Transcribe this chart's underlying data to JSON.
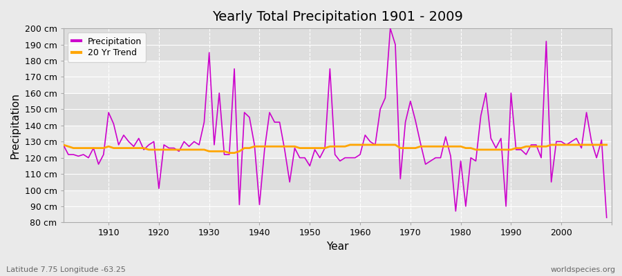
{
  "title": "Yearly Total Precipitation 1901 - 2009",
  "xlabel": "Year",
  "ylabel": "Precipitation",
  "subtitle": "Latitude 7.75 Longitude -63.25",
  "watermark": "worldspecies.org",
  "years": [
    1901,
    1902,
    1903,
    1904,
    1905,
    1906,
    1907,
    1908,
    1909,
    1910,
    1911,
    1912,
    1913,
    1914,
    1915,
    1916,
    1917,
    1918,
    1919,
    1920,
    1921,
    1922,
    1923,
    1924,
    1925,
    1926,
    1927,
    1928,
    1929,
    1930,
    1931,
    1932,
    1933,
    1934,
    1935,
    1936,
    1937,
    1938,
    1939,
    1940,
    1941,
    1942,
    1943,
    1944,
    1945,
    1946,
    1947,
    1948,
    1949,
    1950,
    1951,
    1952,
    1953,
    1954,
    1955,
    1956,
    1957,
    1958,
    1959,
    1960,
    1961,
    1962,
    1963,
    1964,
    1965,
    1966,
    1967,
    1968,
    1969,
    1970,
    1971,
    1972,
    1973,
    1974,
    1975,
    1976,
    1977,
    1978,
    1979,
    1980,
    1981,
    1982,
    1983,
    1984,
    1985,
    1986,
    1987,
    1988,
    1989,
    1990,
    1991,
    1992,
    1993,
    1994,
    1995,
    1996,
    1997,
    1998,
    1999,
    2000,
    2001,
    2002,
    2003,
    2004,
    2005,
    2006,
    2007,
    2008,
    2009
  ],
  "precipitation": [
    128,
    122,
    122,
    121,
    122,
    120,
    126,
    116,
    122,
    148,
    141,
    128,
    134,
    130,
    127,
    132,
    125,
    128,
    130,
    101,
    128,
    126,
    126,
    124,
    130,
    127,
    130,
    128,
    142,
    185,
    128,
    160,
    122,
    122,
    175,
    91,
    148,
    145,
    128,
    91,
    125,
    148,
    142,
    142,
    125,
    105,
    126,
    120,
    120,
    115,
    125,
    120,
    126,
    175,
    122,
    118,
    120,
    120,
    120,
    122,
    134,
    130,
    128,
    150,
    157,
    200,
    190,
    107,
    142,
    155,
    143,
    129,
    116,
    118,
    120,
    120,
    133,
    121,
    87,
    118,
    90,
    120,
    118,
    146,
    160,
    132,
    126,
    132,
    90,
    160,
    125,
    125,
    122,
    128,
    128,
    120,
    192,
    105,
    130,
    130,
    128,
    130,
    132,
    126,
    148,
    130,
    120,
    131,
    83
  ],
  "trend_years": [
    1901,
    1902,
    1903,
    1904,
    1905,
    1906,
    1907,
    1908,
    1909,
    1910,
    1911,
    1912,
    1913,
    1914,
    1915,
    1916,
    1917,
    1918,
    1919,
    1920,
    1921,
    1922,
    1923,
    1924,
    1925,
    1926,
    1927,
    1928,
    1929,
    1930,
    1931,
    1932,
    1933,
    1934,
    1935,
    1936,
    1937,
    1938,
    1939,
    1940,
    1941,
    1942,
    1943,
    1944,
    1945,
    1946,
    1947,
    1948,
    1949,
    1950,
    1951,
    1952,
    1953,
    1954,
    1955,
    1956,
    1957,
    1958,
    1959,
    1960,
    1961,
    1962,
    1963,
    1964,
    1965,
    1966,
    1967,
    1968,
    1969,
    1970,
    1971,
    1972,
    1973,
    1974,
    1975,
    1976,
    1977,
    1978,
    1979,
    1980,
    1981,
    1982,
    1983,
    1984,
    1985,
    1986,
    1987,
    1988,
    1989,
    1990,
    1991,
    1992,
    1993,
    1994,
    1995,
    1996,
    1997,
    1998,
    1999,
    2000,
    2001,
    2002,
    2003,
    2004,
    2005,
    2006,
    2007,
    2008,
    2009
  ],
  "trend": [
    128,
    127,
    126,
    126,
    126,
    126,
    126,
    126,
    126,
    127,
    126,
    126,
    126,
    126,
    126,
    126,
    126,
    125,
    125,
    125,
    125,
    125,
    125,
    125,
    125,
    125,
    125,
    125,
    125,
    124,
    124,
    124,
    124,
    123,
    123,
    124,
    126,
    126,
    127,
    127,
    127,
    127,
    127,
    127,
    127,
    127,
    127,
    126,
    126,
    126,
    126,
    126,
    126,
    127,
    127,
    127,
    127,
    128,
    128,
    128,
    128,
    128,
    128,
    128,
    128,
    128,
    128,
    126,
    126,
    126,
    126,
    127,
    127,
    127,
    127,
    127,
    127,
    127,
    127,
    127,
    126,
    126,
    125,
    125,
    125,
    125,
    125,
    125,
    125,
    125,
    126,
    126,
    127,
    127,
    127,
    127,
    127,
    128,
    128,
    128,
    128,
    128,
    128,
    128,
    128,
    128,
    128,
    128,
    128
  ],
  "line_color": "#CC00CC",
  "trend_color": "#FFA500",
  "bg_color": "#EAEAEA",
  "band_light": "#EBEBEB",
  "band_dark": "#DEDEDE",
  "grid_color": "#FFFFFF",
  "ylim": [
    80,
    200
  ],
  "ytick_step": 10,
  "xlim": [
    1901,
    2010
  ],
  "legend_labels": [
    "Precipitation",
    "20 Yr Trend"
  ]
}
